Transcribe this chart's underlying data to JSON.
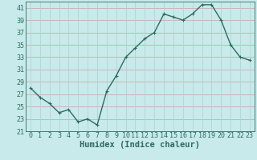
{
  "x": [
    0,
    1,
    2,
    3,
    4,
    5,
    6,
    7,
    8,
    9,
    10,
    11,
    12,
    13,
    14,
    15,
    16,
    17,
    18,
    19,
    20,
    21,
    22,
    23
  ],
  "y": [
    28,
    26.5,
    25.5,
    24,
    24.5,
    22.5,
    23,
    22,
    27.5,
    30,
    33,
    34.5,
    36,
    37,
    40,
    39.5,
    39,
    40,
    41.5,
    41.5,
    39,
    35,
    33,
    32.5
  ],
  "line_color": "#2e6b5e",
  "marker": "+",
  "marker_size": 3,
  "background_color": "#c8eaea",
  "hgrid_color": "#c8a0a0",
  "vgrid_color": "#b0d0d0",
  "xlabel": "Humidex (Indice chaleur)",
  "xlim": [
    -0.5,
    23.5
  ],
  "ylim": [
    21,
    42
  ],
  "yticks": [
    21,
    23,
    25,
    27,
    29,
    31,
    33,
    35,
    37,
    39,
    41
  ],
  "xticks": [
    0,
    1,
    2,
    3,
    4,
    5,
    6,
    7,
    8,
    9,
    10,
    11,
    12,
    13,
    14,
    15,
    16,
    17,
    18,
    19,
    20,
    21,
    22,
    23
  ],
  "xlabel_fontsize": 7.5,
  "tick_fontsize": 6,
  "line_width": 1.0
}
